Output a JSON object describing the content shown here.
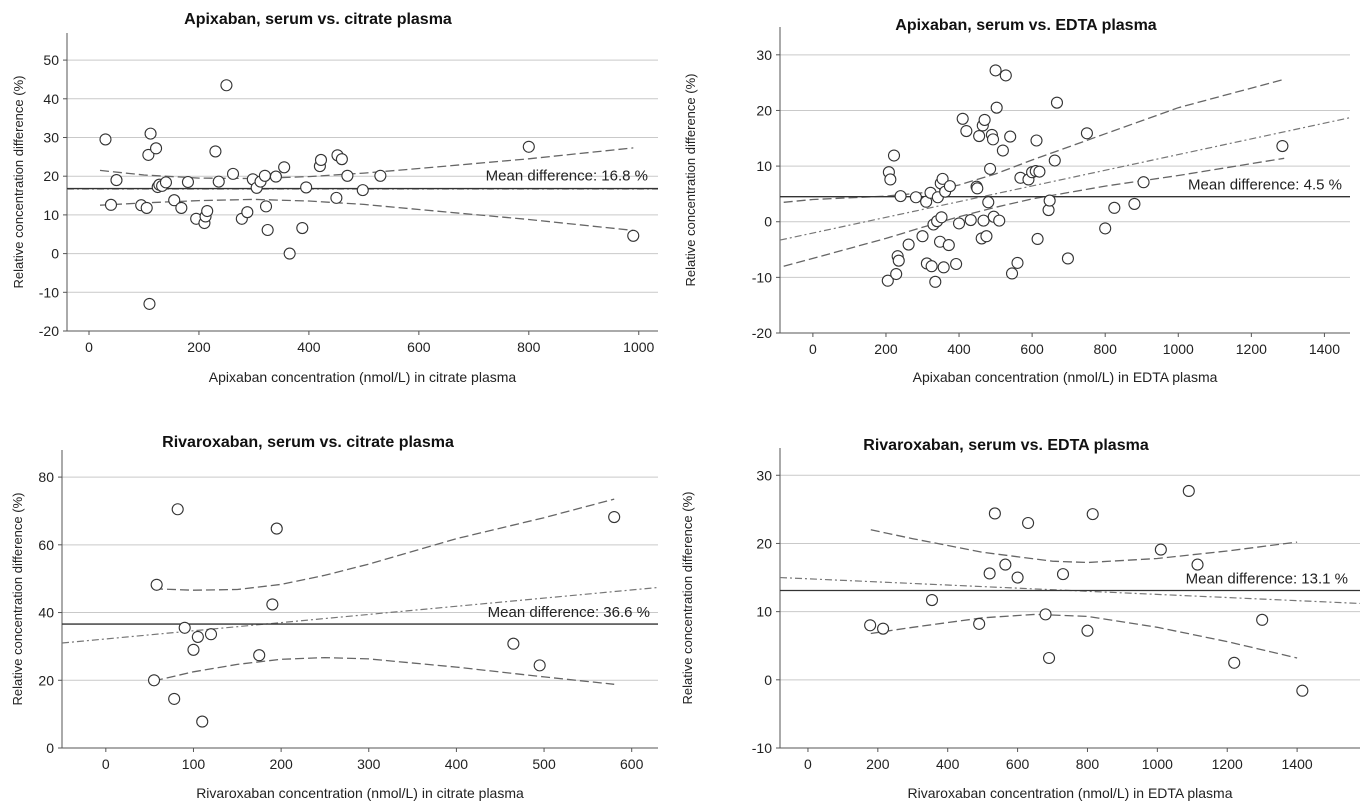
{
  "chart_data": [
    {
      "type": "scatter",
      "title": "Apixaban, serum vs. citrate plasma",
      "xlabel": "Apixaban concentration (nmol/L) in citrate plasma",
      "ylabel": "Relative concentration difference (%)",
      "xlim": [
        -40,
        1035
      ],
      "ylim": [
        -20,
        57
      ],
      "xticks": [
        0,
        200,
        400,
        600,
        800,
        1000
      ],
      "yticks": [
        -20,
        -10,
        0,
        10,
        20,
        30,
        40,
        50
      ],
      "grid": "horizontal",
      "mean_label": "Mean difference: 16.8 %",
      "mean": 16.8,
      "regression": {
        "type": "linear",
        "points": [
          [
            -40,
            16.7
          ],
          [
            1035,
            16.7
          ]
        ]
      },
      "ci_upper": [
        [
          20,
          21.5
        ],
        [
          100,
          20.3
        ],
        [
          200,
          19.5
        ],
        [
          300,
          19.4
        ],
        [
          400,
          19.9
        ],
        [
          500,
          20.8
        ],
        [
          600,
          22.0
        ],
        [
          800,
          24.5
        ],
        [
          990,
          27.3
        ]
      ],
      "ci_lower": [
        [
          20,
          12.5
        ],
        [
          100,
          13.1
        ],
        [
          200,
          13.7
        ],
        [
          300,
          14.0
        ],
        [
          400,
          13.6
        ],
        [
          500,
          12.7
        ],
        [
          600,
          11.4
        ],
        [
          800,
          8.8
        ],
        [
          990,
          6.0
        ]
      ],
      "points": [
        [
          30,
          29.5
        ],
        [
          40,
          12.6
        ],
        [
          50,
          19.0
        ],
        [
          95,
          12.5
        ],
        [
          105,
          11.8
        ],
        [
          108,
          25.5
        ],
        [
          110,
          -13
        ],
        [
          112,
          31
        ],
        [
          122,
          27.2
        ],
        [
          125,
          17.2
        ],
        [
          128,
          17.8
        ],
        [
          133,
          17.5
        ],
        [
          140,
          18.4
        ],
        [
          155,
          13.8
        ],
        [
          168,
          11.8
        ],
        [
          180,
          18.5
        ],
        [
          195,
          9.0
        ],
        [
          210,
          7.9
        ],
        [
          212,
          9.6
        ],
        [
          215,
          11.0
        ],
        [
          230,
          26.4
        ],
        [
          236,
          18.6
        ],
        [
          250,
          43.5
        ],
        [
          262,
          20.6
        ],
        [
          278,
          9.0
        ],
        [
          288,
          10.7
        ],
        [
          298,
          19.2
        ],
        [
          305,
          17.0
        ],
        [
          312,
          18.6
        ],
        [
          320,
          20.1
        ],
        [
          322,
          12.2
        ],
        [
          325,
          6.1
        ],
        [
          340,
          19.9
        ],
        [
          355,
          22.3
        ],
        [
          365,
          0
        ],
        [
          388,
          6.6
        ],
        [
          395,
          17.1
        ],
        [
          420,
          22.6
        ],
        [
          422,
          24.2
        ],
        [
          450,
          14.4
        ],
        [
          452,
          25.4
        ],
        [
          460,
          24.4
        ],
        [
          470,
          20.1
        ],
        [
          498,
          16.4
        ],
        [
          530,
          20.1
        ],
        [
          800,
          27.6
        ],
        [
          990,
          4.6
        ]
      ]
    },
    {
      "type": "scatter",
      "title": "Apixaban, serum vs. EDTA plasma",
      "xlabel": "Apixaban concentration (nmol/L) in EDTA plasma",
      "ylabel": "Relative concentration difference (%)",
      "xlim": [
        -90,
        1470
      ],
      "ylim": [
        -20,
        35
      ],
      "xticks": [
        0,
        200,
        400,
        600,
        800,
        1000,
        1200,
        1400
      ],
      "yticks": [
        -20,
        -10,
        0,
        10,
        20,
        30
      ],
      "grid": "horizontal",
      "mean_label": "Mean difference: 4.5 %",
      "mean": 4.5,
      "regression": {
        "type": "linear",
        "points": [
          [
            -90,
            -3.3
          ],
          [
            1470,
            18.7
          ]
        ]
      },
      "ci_upper": [
        [
          -80,
          3.5
        ],
        [
          0,
          4.0
        ],
        [
          200,
          4.6
        ],
        [
          300,
          5.2
        ],
        [
          400,
          6.6
        ],
        [
          500,
          8.6
        ],
        [
          600,
          11.1
        ],
        [
          800,
          15.8
        ],
        [
          1000,
          20.5
        ],
        [
          1290,
          25.6
        ]
      ],
      "ci_lower": [
        [
          -80,
          -8.0
        ],
        [
          0,
          -6.6
        ],
        [
          200,
          -3.0
        ],
        [
          300,
          -1.0
        ],
        [
          400,
          0.9
        ],
        [
          500,
          2.6
        ],
        [
          600,
          4.1
        ],
        [
          800,
          6.4
        ],
        [
          1000,
          8.3
        ],
        [
          1290,
          11.4
        ]
      ],
      "points": [
        [
          205,
          -10.6
        ],
        [
          208,
          8.9
        ],
        [
          212,
          7.6
        ],
        [
          222,
          11.9
        ],
        [
          228,
          -9.4
        ],
        [
          232,
          -6.2
        ],
        [
          235,
          -7.0
        ],
        [
          240,
          4.6
        ],
        [
          262,
          -4.1
        ],
        [
          282,
          4.4
        ],
        [
          300,
          -2.6
        ],
        [
          310,
          3.6
        ],
        [
          312,
          -7.5
        ],
        [
          322,
          5.2
        ],
        [
          325,
          -8.0
        ],
        [
          330,
          -0.5
        ],
        [
          335,
          -10.8
        ],
        [
          340,
          0.1
        ],
        [
          342,
          4.4
        ],
        [
          348,
          -3.6
        ],
        [
          350,
          6.9
        ],
        [
          352,
          0.8
        ],
        [
          355,
          7.7
        ],
        [
          358,
          -8.2
        ],
        [
          362,
          5.4
        ],
        [
          372,
          -4.2
        ],
        [
          375,
          6.4
        ],
        [
          392,
          -7.6
        ],
        [
          400,
          -0.3
        ],
        [
          410,
          18.5
        ],
        [
          420,
          16.3
        ],
        [
          432,
          0.3
        ],
        [
          448,
          6.3
        ],
        [
          450,
          6.0
        ],
        [
          455,
          15.4
        ],
        [
          462,
          -3.0
        ],
        [
          465,
          17.3
        ],
        [
          467,
          0.2
        ],
        [
          470,
          18.3
        ],
        [
          475,
          -2.6
        ],
        [
          480,
          3.5
        ],
        [
          485,
          9.5
        ],
        [
          490,
          15.6
        ],
        [
          493,
          14.8
        ],
        [
          495,
          0.9
        ],
        [
          500,
          27.2
        ],
        [
          503,
          20.5
        ],
        [
          510,
          0.2
        ],
        [
          520,
          12.8
        ],
        [
          528,
          26.3
        ],
        [
          540,
          15.3
        ],
        [
          545,
          -9.3
        ],
        [
          560,
          -7.4
        ],
        [
          568,
          7.9
        ],
        [
          590,
          7.6
        ],
        [
          600,
          8.9
        ],
        [
          610,
          9.1
        ],
        [
          612,
          14.6
        ],
        [
          615,
          -3.1
        ],
        [
          620,
          9.0
        ],
        [
          645,
          2.1
        ],
        [
          648,
          3.8
        ],
        [
          662,
          11.0
        ],
        [
          668,
          21.4
        ],
        [
          698,
          -6.6
        ],
        [
          750,
          15.9
        ],
        [
          800,
          -1.2
        ],
        [
          825,
          2.5
        ],
        [
          880,
          3.2
        ],
        [
          905,
          7.1
        ],
        [
          1285,
          13.6
        ]
      ]
    },
    {
      "type": "scatter",
      "title": "Rivaroxaban, serum vs. citrate plasma",
      "xlabel": "Rivaroxaban concentration (nmol/L) in citrate plasma",
      "ylabel": "Relative concentration difference (%)",
      "xlim": [
        -50,
        630
      ],
      "ylim": [
        0,
        88
      ],
      "xticks": [
        0,
        100,
        200,
        300,
        400,
        500,
        600
      ],
      "yticks": [
        0,
        20,
        40,
        60,
        80
      ],
      "grid": "horizontal",
      "mean_label": "Mean difference: 36.6 %",
      "mean": 36.6,
      "regression": {
        "type": "linear",
        "points": [
          [
            -50,
            31.0
          ],
          [
            630,
            47.4
          ]
        ]
      },
      "ci_upper": [
        [
          55,
          47.0
        ],
        [
          100,
          46.6
        ],
        [
          150,
          46.8
        ],
        [
          200,
          48.3
        ],
        [
          250,
          51.0
        ],
        [
          300,
          54.3
        ],
        [
          400,
          61.8
        ],
        [
          500,
          68.0
        ],
        [
          580,
          73.5
        ]
      ],
      "ci_lower": [
        [
          55,
          19.8
        ],
        [
          100,
          22.5
        ],
        [
          150,
          24.7
        ],
        [
          200,
          26.2
        ],
        [
          250,
          26.7
        ],
        [
          300,
          26.3
        ],
        [
          400,
          23.9
        ],
        [
          500,
          21.0
        ],
        [
          580,
          18.8
        ]
      ],
      "points": [
        [
          55,
          20
        ],
        [
          58,
          48.2
        ],
        [
          78,
          14.5
        ],
        [
          82,
          70.5
        ],
        [
          90,
          35.5
        ],
        [
          100,
          29.0
        ],
        [
          105,
          32.8
        ],
        [
          110,
          7.8
        ],
        [
          120,
          33.6
        ],
        [
          175,
          27.4
        ],
        [
          190,
          42.4
        ],
        [
          195,
          64.8
        ],
        [
          465,
          30.8
        ],
        [
          495,
          24.4
        ],
        [
          580,
          68.2
        ]
      ]
    },
    {
      "type": "scatter",
      "title": "Rivaroxaban, serum vs. EDTA plasma",
      "xlabel": "Rivaroxaban concentration (nmol/L) in EDTA plasma",
      "ylabel": "Relative concentration difference (%)",
      "xlim": [
        -80,
        1580
      ],
      "ylim": [
        -10,
        34
      ],
      "xticks": [
        0,
        200,
        400,
        600,
        800,
        1000,
        1200,
        1400
      ],
      "yticks": [
        -10,
        0,
        10,
        20,
        30
      ],
      "grid": "horizontal",
      "mean_label": "Mean difference: 13.1 %",
      "mean": 13.1,
      "regression": {
        "type": "linear",
        "points": [
          [
            -80,
            15.0
          ],
          [
            1580,
            11.2
          ]
        ]
      },
      "ci_upper": [
        [
          180,
          22.0
        ],
        [
          300,
          20.7
        ],
        [
          500,
          18.7
        ],
        [
          700,
          17.4
        ],
        [
          800,
          17.2
        ],
        [
          1000,
          17.8
        ],
        [
          1200,
          18.9
        ],
        [
          1400,
          20.2
        ]
      ],
      "ci_lower": [
        [
          180,
          6.8
        ],
        [
          300,
          7.7
        ],
        [
          500,
          9.1
        ],
        [
          650,
          9.6
        ],
        [
          800,
          9.3
        ],
        [
          1000,
          7.7
        ],
        [
          1200,
          5.6
        ],
        [
          1400,
          3.2
        ]
      ],
      "points": [
        [
          178,
          8.0
        ],
        [
          215,
          7.5
        ],
        [
          355,
          11.7
        ],
        [
          490,
          8.2
        ],
        [
          520,
          15.6
        ],
        [
          535,
          24.4
        ],
        [
          565,
          16.9
        ],
        [
          600,
          15.0
        ],
        [
          630,
          23.0
        ],
        [
          680,
          9.6
        ],
        [
          690,
          3.2
        ],
        [
          730,
          15.5
        ],
        [
          800,
          7.2
        ],
        [
          815,
          24.3
        ],
        [
          1010,
          19.1
        ],
        [
          1090,
          27.7
        ],
        [
          1115,
          16.9
        ],
        [
          1220,
          2.5
        ],
        [
          1300,
          8.8
        ],
        [
          1415,
          -1.6
        ]
      ]
    }
  ]
}
